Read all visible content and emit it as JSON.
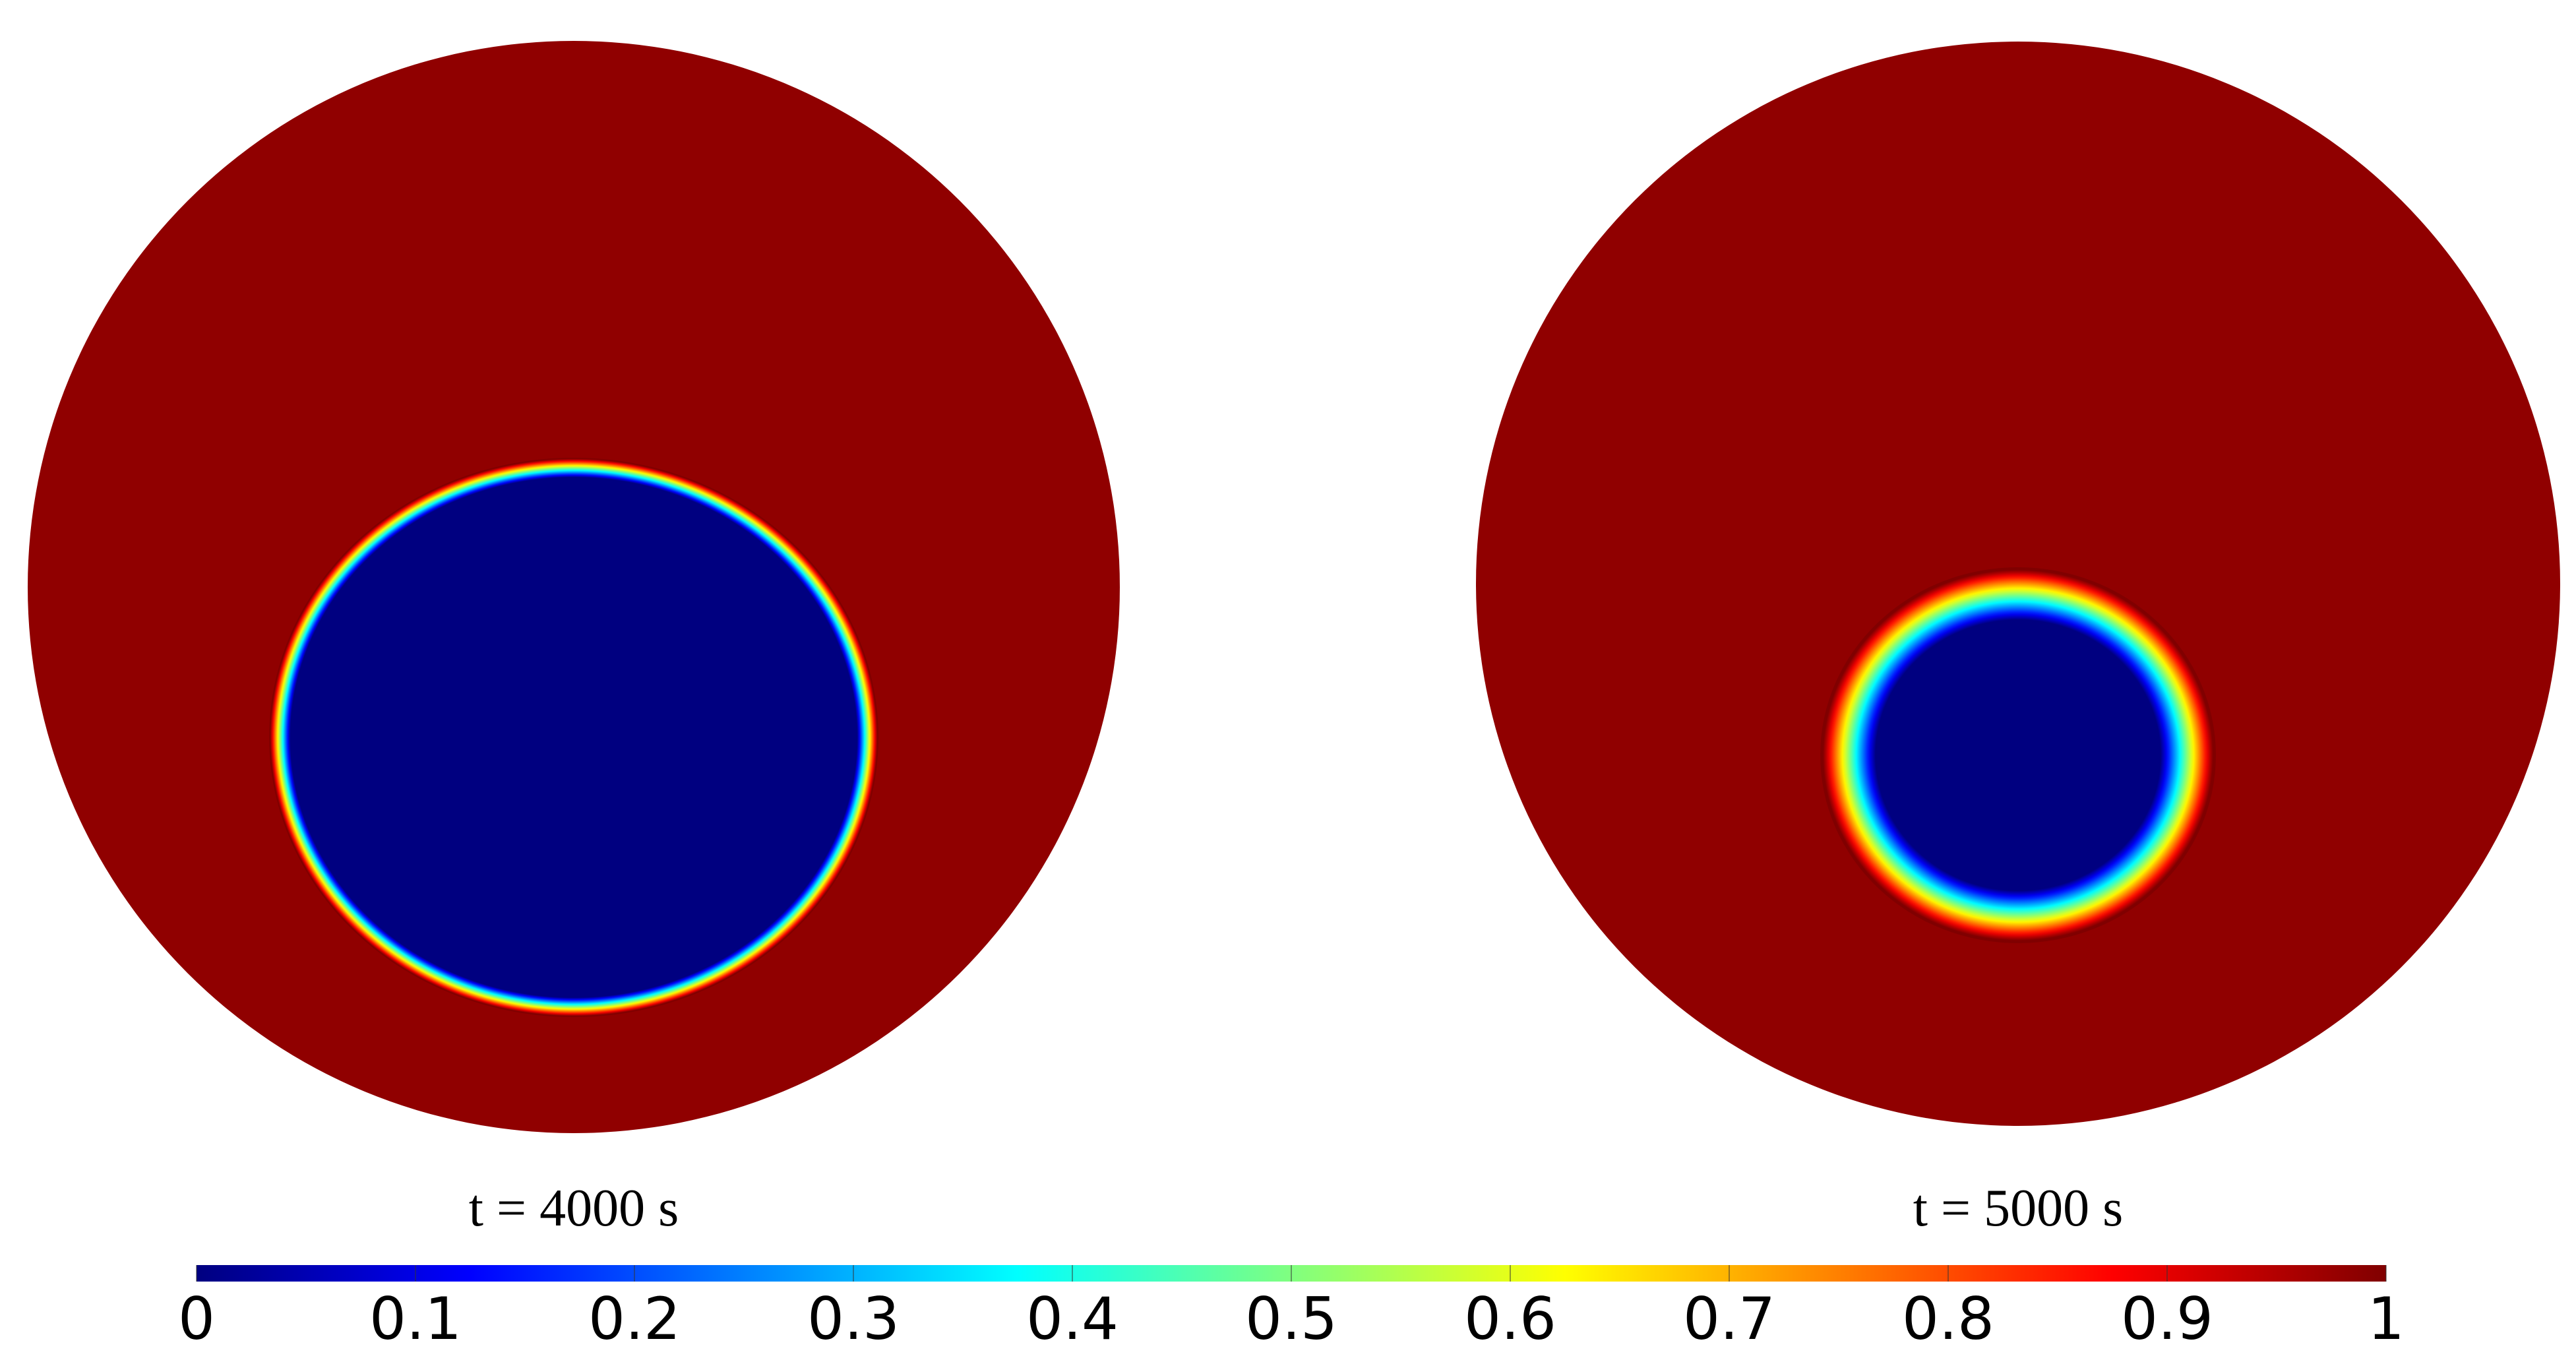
{
  "chart_data": {
    "type": "field",
    "colormap": "jet",
    "panels": [
      {
        "label": "t = 4000 s"
      },
      {
        "label": "t = 5000 s"
      }
    ],
    "clim": [
      0,
      1
    ],
    "cticks": [
      0,
      0.1,
      0.2,
      0.3,
      0.4,
      0.5,
      0.6,
      0.7,
      0.8,
      0.9,
      1
    ]
  }
}
